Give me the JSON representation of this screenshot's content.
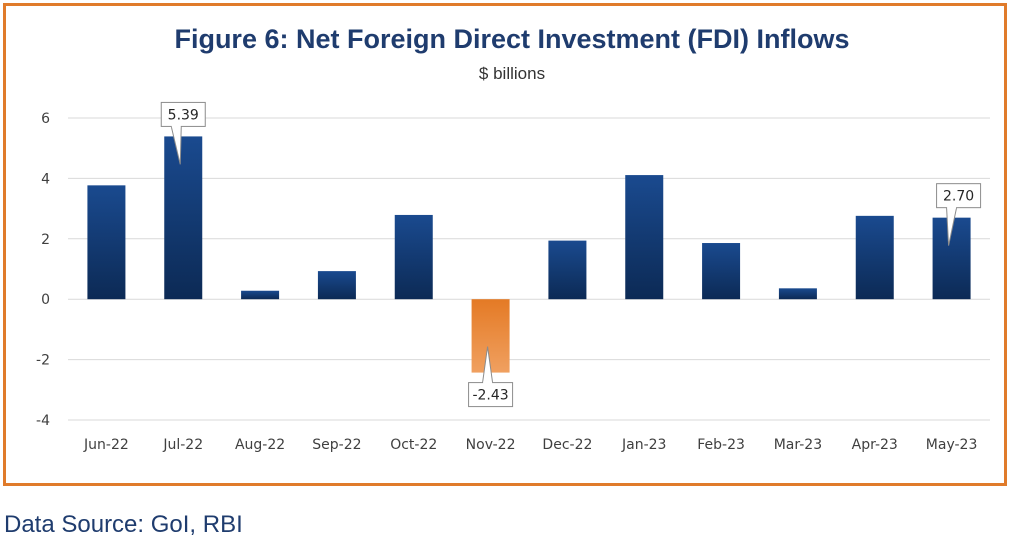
{
  "source_note": "Data Source: GoI, RBI",
  "chart_data": {
    "type": "bar",
    "title": "Figure 6: Net Foreign Direct Investment (FDI) Inflows",
    "subtitle": "$ billions",
    "categories": [
      "Jun-22",
      "Jul-22",
      "Aug-22",
      "Sep-22",
      "Oct-22",
      "Nov-22",
      "Dec-22",
      "Jan-23",
      "Feb-23",
      "Mar-23",
      "Apr-23",
      "May-23"
    ],
    "values": [
      3.77,
      5.39,
      0.28,
      0.93,
      2.79,
      -2.43,
      1.94,
      4.11,
      1.86,
      0.36,
      2.76,
      2.7
    ],
    "ylim": [
      -4,
      6
    ],
    "yticks": [
      6,
      4,
      2,
      0,
      -2,
      -4
    ],
    "grid": true,
    "data_labels": [
      {
        "index": 1,
        "text": "5.39"
      },
      {
        "index": 5,
        "text": "-2.43"
      },
      {
        "index": 11,
        "text": "2.70"
      }
    ],
    "colors": {
      "positive_top": "#1a4a8f",
      "positive_bottom": "#0c2a55",
      "negative_top": "#e47a25",
      "negative_bottom": "#f0a060",
      "frame": "#e07b2a",
      "title": "#1f3c6e"
    }
  }
}
